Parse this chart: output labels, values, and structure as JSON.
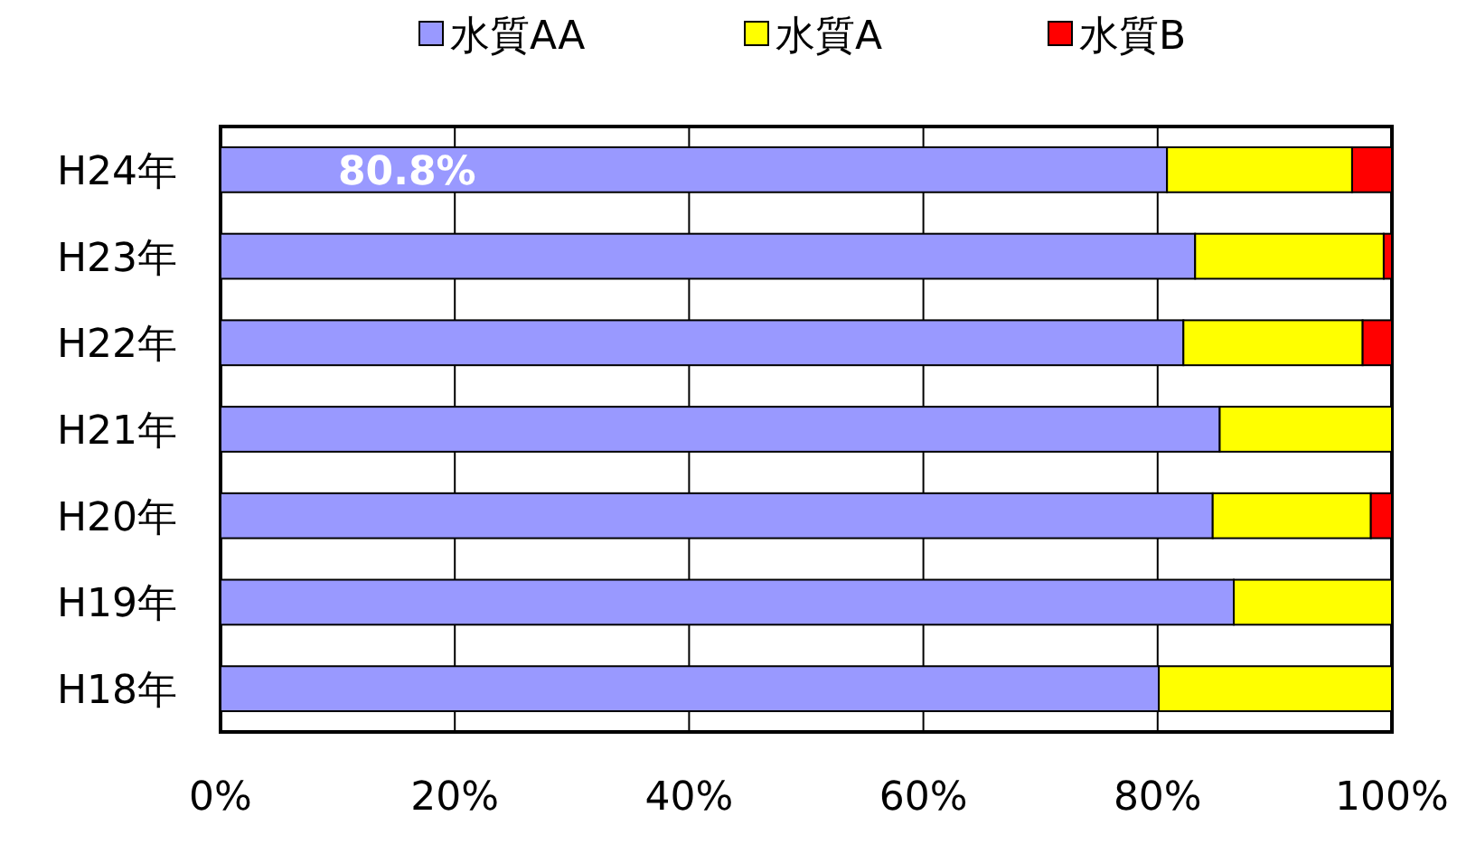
{
  "chart_data": {
    "type": "bar",
    "orientation": "horizontal",
    "stacked": true,
    "categories": [
      "H24年",
      "H23年",
      "H22年",
      "H21年",
      "H20年",
      "H19年",
      "H18年"
    ],
    "series": [
      {
        "name": "水質AA",
        "color": "#9999ff",
        "values": [
          80.8,
          83.2,
          82.2,
          85.3,
          84.7,
          86.5,
          80.1
        ],
        "value_labels": [
          "80.8%",
          null,
          null,
          null,
          null,
          null,
          null
        ]
      },
      {
        "name": "水質A",
        "color": "#ffff00",
        "values": [
          15.8,
          16.1,
          15.3,
          14.7,
          13.5,
          13.5,
          19.9
        ]
      },
      {
        "name": "水質B",
        "color": "#ff0000",
        "values": [
          3.4,
          0.7,
          2.5,
          0,
          1.8,
          0,
          0
        ]
      }
    ],
    "xlim": [
      0,
      100
    ],
    "xticks": [
      {
        "value": 0,
        "label": "0%"
      },
      {
        "value": 20,
        "label": "20%"
      },
      {
        "value": 40,
        "label": "40%"
      },
      {
        "value": 60,
        "label": "60%"
      },
      {
        "value": 80,
        "label": "80%"
      },
      {
        "value": 100,
        "label": "100%"
      }
    ],
    "grid": "x",
    "legend": "top"
  }
}
